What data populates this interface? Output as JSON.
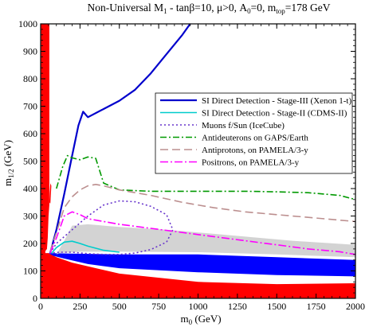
{
  "chart_data": {
    "type": "line",
    "title_parts": {
      "pre": "Non-Universal M",
      "pre_sub": "1",
      "post": " - tanβ=10, μ>0, A",
      "a_sub": "0",
      "mid": "=0, m",
      "top_sub": "top",
      "tail": "=178 GeV"
    },
    "xlabel": {
      "main": "m",
      "sub": "0",
      "unit": " (GeV)"
    },
    "ylabel": {
      "main": "m",
      "sub": "1/2",
      "unit": " (GeV)"
    },
    "xlim": [
      0,
      2000
    ],
    "ylim": [
      0,
      1000
    ],
    "x_ticks": [
      0,
      250,
      500,
      750,
      1000,
      1250,
      1500,
      1750,
      2000
    ],
    "x_tick_labels": [
      "0",
      "250",
      "500",
      "750",
      "1000",
      "1250",
      "1500",
      "1750",
      "2000"
    ],
    "y_ticks": [
      0,
      100,
      200,
      300,
      400,
      500,
      600,
      700,
      800,
      900,
      1000
    ],
    "y_tick_labels": [
      "0",
      "100",
      "200",
      "300",
      "400",
      "500",
      "600",
      "700",
      "800",
      "900",
      "1000"
    ],
    "x_minor_step": 50,
    "y_minor_step": 20,
    "legend_position": "right-center",
    "regions": [
      {
        "label": "red-excluded",
        "color": "#ff0000",
        "polygon": [
          [
            0,
            0
          ],
          [
            2000,
            0
          ],
          [
            2000,
            55
          ],
          [
            1500,
            52
          ],
          [
            1000,
            60
          ],
          [
            500,
            90
          ],
          [
            200,
            130
          ],
          [
            100,
            150
          ],
          [
            50,
            165
          ],
          [
            30,
            165
          ],
          [
            30,
            300
          ],
          [
            30,
            950
          ],
          [
            50,
            1000
          ],
          [
            0,
            1000
          ]
        ]
      },
      {
        "label": "red-band-left",
        "color": "#ff0000",
        "polygon": [
          [
            20,
            1000
          ],
          [
            55,
            1000
          ],
          [
            55,
            340
          ],
          [
            50,
            300
          ],
          [
            45,
            220
          ],
          [
            40,
            180
          ],
          [
            20,
            165
          ]
        ]
      },
      {
        "label": "red-spike",
        "color": "#ff0000",
        "polygon": [
          [
            55,
            350
          ],
          [
            62,
            345
          ],
          [
            68,
            410
          ],
          [
            62,
            420
          ],
          [
            57,
            380
          ]
        ]
      },
      {
        "label": "blue-band",
        "color": "#0000ff",
        "polygon": [
          [
            50,
            165
          ],
          [
            200,
            163
          ],
          [
            500,
            160
          ],
          [
            1000,
            160
          ],
          [
            1500,
            150
          ],
          [
            2000,
            140
          ],
          [
            2000,
            80
          ],
          [
            1500,
            85
          ],
          [
            1000,
            95
          ],
          [
            500,
            110
          ],
          [
            300,
            125
          ],
          [
            150,
            145
          ],
          [
            80,
            155
          ]
        ]
      },
      {
        "label": "gray-band",
        "color": "#d3d3d3",
        "polygon": [
          [
            100,
            160
          ],
          [
            150,
            210
          ],
          [
            200,
            265
          ],
          [
            300,
            270
          ],
          [
            500,
            260
          ],
          [
            800,
            250
          ],
          [
            1200,
            230
          ],
          [
            1600,
            210
          ],
          [
            2000,
            195
          ],
          [
            2000,
            150
          ],
          [
            1500,
            160
          ],
          [
            1000,
            168
          ],
          [
            500,
            170
          ],
          [
            250,
            170
          ],
          [
            120,
            165
          ]
        ]
      }
    ],
    "series": [
      {
        "name": "SI Direct Detection - Stage-III (Xenon 1-t)",
        "color": "#0000cc",
        "dash": "",
        "width": 2.2,
        "x": [
          60,
          100,
          150,
          200,
          240,
          270,
          300,
          400,
          500,
          600,
          700,
          800,
          900,
          950
        ],
        "y": [
          165,
          250,
          380,
          520,
          630,
          680,
          660,
          690,
          720,
          760,
          820,
          890,
          960,
          1000
        ]
      },
      {
        "name": "SI Direct Detection - Stage-II (CDMS-II)",
        "color": "#00cccc",
        "dash": "",
        "width": 1.6,
        "x": [
          70,
          100,
          150,
          200,
          250,
          300,
          400,
          500
        ],
        "y": [
          165,
          185,
          205,
          208,
          200,
          190,
          175,
          168
        ]
      },
      {
        "name": "Muons f/Sun (IceCube)",
        "color": "#6633cc",
        "dash": "2,3",
        "width": 1.6,
        "x": [
          60,
          100,
          200,
          300,
          400,
          500,
          600,
          700,
          800,
          840,
          800,
          700,
          600,
          500,
          400,
          300,
          200,
          120,
          60
        ],
        "y": [
          165,
          200,
          250,
          300,
          340,
          355,
          352,
          335,
          305,
          250,
          205,
          178,
          165,
          160,
          160,
          163,
          168,
          168,
          165
        ]
      },
      {
        "name": "Antideuterons on GAPS/Earth",
        "color": "#009900",
        "dash": "8,3,2,3",
        "width": 1.6,
        "x": [
          100,
          140,
          170,
          200,
          250,
          300,
          350,
          400,
          500,
          700,
          900,
          1100,
          1300,
          1500,
          1700,
          1900,
          2000
        ],
        "y": [
          400,
          480,
          520,
          512,
          505,
          515,
          510,
          420,
          395,
          390,
          390,
          390,
          390,
          388,
          385,
          375,
          360
        ]
      },
      {
        "name": "Antiprotons, on PAMELA/3-y",
        "color": "#bc8f8f",
        "dash": "10,5",
        "width": 1.6,
        "x": [
          60,
          100,
          150,
          200,
          250,
          300,
          350,
          400,
          500,
          700,
          900,
          1100,
          1300,
          1500,
          1700,
          1900,
          2000
        ],
        "y": [
          170,
          240,
          330,
          370,
          395,
          410,
          415,
          410,
          395,
          375,
          350,
          330,
          315,
          305,
          295,
          285,
          280
        ]
      },
      {
        "name": "Positrons, on PAMELA/3-y",
        "color": "#ff00ff",
        "dash": "10,3,2,3",
        "width": 1.6,
        "x": [
          60,
          100,
          150,
          200,
          250,
          300,
          400,
          500,
          700,
          900,
          1100,
          1300,
          1500,
          1700,
          1900,
          2000
        ],
        "y": [
          165,
          220,
          300,
          315,
          305,
          290,
          280,
          270,
          255,
          240,
          225,
          210,
          195,
          180,
          170,
          160
        ]
      }
    ]
  }
}
